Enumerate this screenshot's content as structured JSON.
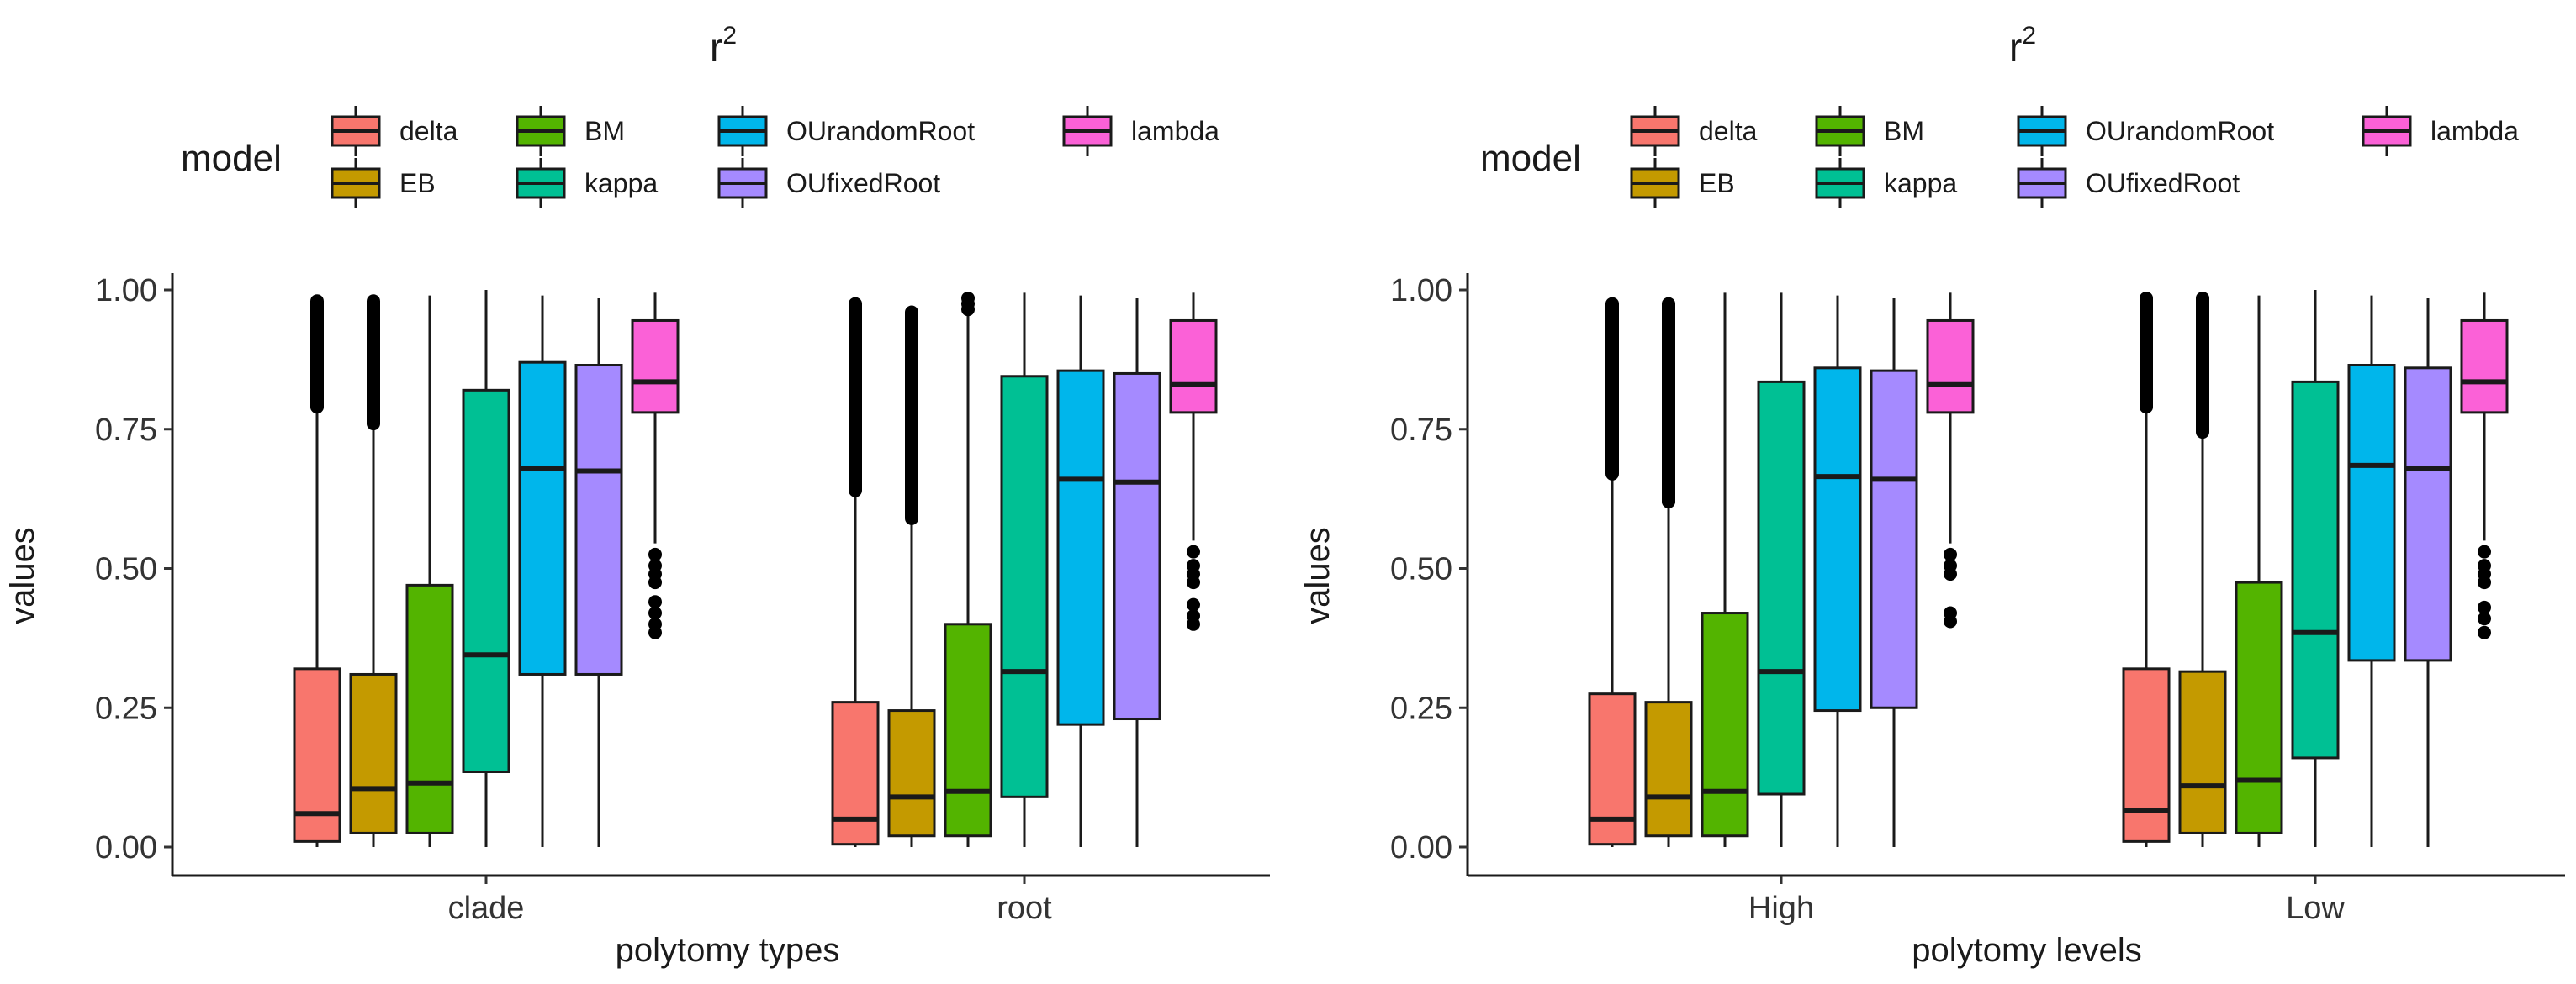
{
  "models": [
    {
      "name": "delta",
      "color": "#F8766D"
    },
    {
      "name": "EB",
      "color": "#C49A00"
    },
    {
      "name": "BM",
      "color": "#53B400"
    },
    {
      "name": "kappa",
      "color": "#00C094"
    },
    {
      "name": "OUrandomRoot",
      "color": "#00B6EB"
    },
    {
      "name": "OUfixedRoot",
      "color": "#A58AFF"
    },
    {
      "name": "lambda",
      "color": "#FB61D7"
    }
  ],
  "legend": {
    "title": "model",
    "order": [
      "delta",
      "EB",
      "BM",
      "kappa",
      "OUrandomRoot",
      "OUfixedRoot",
      "lambda"
    ]
  },
  "chart_data": [
    {
      "type": "boxplot",
      "title": "r",
      "title_superscript": "2",
      "xlabel": "polytomy types",
      "ylabel": "values",
      "ylim": [
        0,
        1
      ],
      "yticks": [
        "0.00",
        "0.25",
        "0.50",
        "0.75",
        "1.00"
      ],
      "categories": [
        "clade",
        "root"
      ],
      "groups": [
        {
          "category": "clade",
          "boxes": [
            {
              "model": "delta",
              "q1": 0.01,
              "median": 0.06,
              "q3": 0.32,
              "whisker_low": 0.0,
              "whisker_high": 0.79,
              "outliers_range": [
                0.79,
                0.98
              ]
            },
            {
              "model": "EB",
              "q1": 0.025,
              "median": 0.105,
              "q3": 0.31,
              "whisker_low": 0.0,
              "whisker_high": 0.76,
              "outliers_range": [
                0.76,
                0.98
              ]
            },
            {
              "model": "BM",
              "q1": 0.025,
              "median": 0.115,
              "q3": 0.47,
              "whisker_low": 0.0,
              "whisker_high": 0.99
            },
            {
              "model": "kappa",
              "q1": 0.135,
              "median": 0.345,
              "q3": 0.82,
              "whisker_low": 0.0,
              "whisker_high": 1.0
            },
            {
              "model": "OUrandomRoot",
              "q1": 0.31,
              "median": 0.68,
              "q3": 0.87,
              "whisker_low": 0.0,
              "whisker_high": 0.99
            },
            {
              "model": "OUfixedRoot",
              "q1": 0.31,
              "median": 0.675,
              "q3": 0.865,
              "whisker_low": 0.0,
              "whisker_high": 0.985
            },
            {
              "model": "lambda",
              "q1": 0.78,
              "median": 0.835,
              "q3": 0.945,
              "whisker_low": 0.545,
              "whisker_high": 0.995,
              "outliers": [
                0.525,
                0.505,
                0.49,
                0.475,
                0.44,
                0.42,
                0.4,
                0.385
              ]
            }
          ]
        },
        {
          "category": "root",
          "boxes": [
            {
              "model": "delta",
              "q1": 0.005,
              "median": 0.05,
              "q3": 0.26,
              "whisker_low": 0.0,
              "whisker_high": 0.64,
              "outliers_range": [
                0.64,
                0.975
              ]
            },
            {
              "model": "EB",
              "q1": 0.02,
              "median": 0.09,
              "q3": 0.245,
              "whisker_low": 0.0,
              "whisker_high": 0.59,
              "outliers_range": [
                0.59,
                0.96
              ]
            },
            {
              "model": "BM",
              "q1": 0.02,
              "median": 0.1,
              "q3": 0.4,
              "whisker_low": 0.0,
              "whisker_high": 0.96,
              "outliers": [
                0.965,
                0.975,
                0.985
              ]
            },
            {
              "model": "kappa",
              "q1": 0.09,
              "median": 0.315,
              "q3": 0.845,
              "whisker_low": 0.0,
              "whisker_high": 0.995
            },
            {
              "model": "OUrandomRoot",
              "q1": 0.22,
              "median": 0.66,
              "q3": 0.855,
              "whisker_low": 0.0,
              "whisker_high": 0.99
            },
            {
              "model": "OUfixedRoot",
              "q1": 0.23,
              "median": 0.655,
              "q3": 0.85,
              "whisker_low": 0.0,
              "whisker_high": 0.985
            },
            {
              "model": "lambda",
              "q1": 0.78,
              "median": 0.83,
              "q3": 0.945,
              "whisker_low": 0.55,
              "whisker_high": 0.995,
              "outliers": [
                0.53,
                0.505,
                0.49,
                0.475,
                0.435,
                0.415,
                0.4
              ]
            }
          ]
        }
      ]
    },
    {
      "type": "boxplot",
      "title": "r",
      "title_superscript": "2",
      "xlabel": "polytomy levels",
      "ylabel": "values",
      "ylim": [
        0,
        1
      ],
      "yticks": [
        "0.00",
        "0.25",
        "0.50",
        "0.75",
        "1.00"
      ],
      "categories": [
        "High",
        "Low"
      ],
      "groups": [
        {
          "category": "High",
          "boxes": [
            {
              "model": "delta",
              "q1": 0.005,
              "median": 0.05,
              "q3": 0.275,
              "whisker_low": 0.0,
              "whisker_high": 0.67,
              "outliers_range": [
                0.67,
                0.975
              ]
            },
            {
              "model": "EB",
              "q1": 0.02,
              "median": 0.09,
              "q3": 0.26,
              "whisker_low": 0.0,
              "whisker_high": 0.62,
              "outliers_range": [
                0.62,
                0.975
              ]
            },
            {
              "model": "BM",
              "q1": 0.02,
              "median": 0.1,
              "q3": 0.42,
              "whisker_low": 0.0,
              "whisker_high": 0.995
            },
            {
              "model": "kappa",
              "q1": 0.095,
              "median": 0.315,
              "q3": 0.835,
              "whisker_low": 0.0,
              "whisker_high": 0.995
            },
            {
              "model": "OUrandomRoot",
              "q1": 0.245,
              "median": 0.665,
              "q3": 0.86,
              "whisker_low": 0.0,
              "whisker_high": 0.99
            },
            {
              "model": "OUfixedRoot",
              "q1": 0.25,
              "median": 0.66,
              "q3": 0.855,
              "whisker_low": 0.0,
              "whisker_high": 0.985
            },
            {
              "model": "lambda",
              "q1": 0.78,
              "median": 0.83,
              "q3": 0.945,
              "whisker_low": 0.545,
              "whisker_high": 0.995,
              "outliers": [
                0.525,
                0.505,
                0.49,
                0.42,
                0.405
              ]
            }
          ]
        },
        {
          "category": "Low",
          "boxes": [
            {
              "model": "delta",
              "q1": 0.01,
              "median": 0.065,
              "q3": 0.32,
              "whisker_low": 0.0,
              "whisker_high": 0.79,
              "outliers_range": [
                0.79,
                0.985
              ]
            },
            {
              "model": "EB",
              "q1": 0.025,
              "median": 0.11,
              "q3": 0.315,
              "whisker_low": 0.0,
              "whisker_high": 0.745,
              "outliers_range": [
                0.745,
                0.985
              ]
            },
            {
              "model": "BM",
              "q1": 0.025,
              "median": 0.12,
              "q3": 0.475,
              "whisker_low": 0.0,
              "whisker_high": 0.99
            },
            {
              "model": "kappa",
              "q1": 0.16,
              "median": 0.385,
              "q3": 0.835,
              "whisker_low": 0.0,
              "whisker_high": 1.0
            },
            {
              "model": "OUrandomRoot",
              "q1": 0.335,
              "median": 0.685,
              "q3": 0.865,
              "whisker_low": 0.0,
              "whisker_high": 0.99
            },
            {
              "model": "OUfixedRoot",
              "q1": 0.335,
              "median": 0.68,
              "q3": 0.86,
              "whisker_low": 0.0,
              "whisker_high": 0.985
            },
            {
              "model": "lambda",
              "q1": 0.78,
              "median": 0.835,
              "q3": 0.945,
              "whisker_low": 0.55,
              "whisker_high": 0.995,
              "outliers": [
                0.53,
                0.505,
                0.49,
                0.475,
                0.43,
                0.41,
                0.385
              ]
            }
          ]
        }
      ]
    }
  ]
}
